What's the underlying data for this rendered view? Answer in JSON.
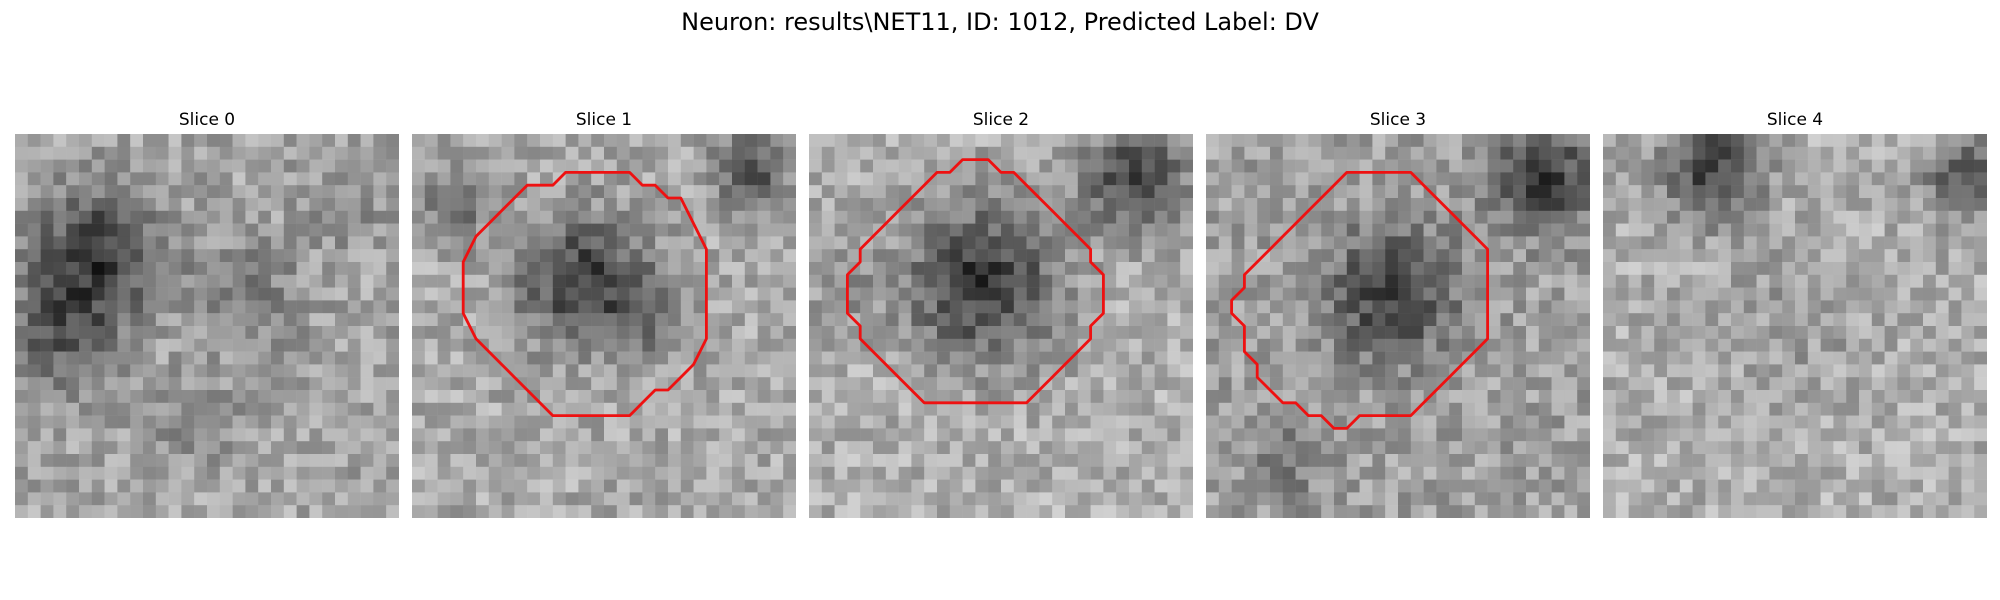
{
  "figure": {
    "title": "Neuron: results\\NET11, ID: 1012, Predicted Label: DV"
  },
  "slices": [
    {
      "title": "Slice 0",
      "contour": null
    },
    {
      "title": "Slice 1",
      "contour": [
        [
          16,
          3
        ],
        [
          17,
          3
        ],
        [
          18,
          4
        ],
        [
          19,
          4
        ],
        [
          20,
          5
        ],
        [
          21,
          5
        ],
        [
          22,
          7
        ],
        [
          23,
          9
        ],
        [
          23,
          16
        ],
        [
          22,
          18
        ],
        [
          21,
          19
        ],
        [
          20,
          20
        ],
        [
          19,
          20
        ],
        [
          18,
          21
        ],
        [
          17,
          22
        ],
        [
          11,
          22
        ],
        [
          9,
          20
        ],
        [
          8,
          19
        ],
        [
          7,
          18
        ],
        [
          5,
          16
        ],
        [
          4,
          14
        ],
        [
          4,
          10
        ],
        [
          5,
          8
        ],
        [
          6,
          7
        ],
        [
          7,
          6
        ],
        [
          8,
          5
        ],
        [
          9,
          4
        ],
        [
          11,
          4
        ],
        [
          12,
          3
        ],
        [
          13,
          3
        ],
        [
          14,
          3
        ],
        [
          15,
          3
        ]
      ]
    },
    {
      "title": "Slice 2",
      "contour": [
        [
          13,
          2
        ],
        [
          14,
          2
        ],
        [
          15,
          3
        ],
        [
          16,
          3
        ],
        [
          17,
          4
        ],
        [
          18,
          5
        ],
        [
          19,
          6
        ],
        [
          20,
          7
        ],
        [
          21,
          8
        ],
        [
          22,
          9
        ],
        [
          22,
          10
        ],
        [
          23,
          11
        ],
        [
          23,
          12
        ],
        [
          23,
          13
        ],
        [
          23,
          14
        ],
        [
          22,
          15
        ],
        [
          22,
          16
        ],
        [
          21,
          17
        ],
        [
          20,
          18
        ],
        [
          19,
          19
        ],
        [
          18,
          20
        ],
        [
          17,
          21
        ],
        [
          9,
          21
        ],
        [
          8,
          20
        ],
        [
          7,
          19
        ],
        [
          6,
          18
        ],
        [
          5,
          17
        ],
        [
          4,
          16
        ],
        [
          4,
          15
        ],
        [
          3,
          14
        ],
        [
          3,
          13
        ],
        [
          3,
          12
        ],
        [
          3,
          11
        ],
        [
          4,
          10
        ],
        [
          4,
          9
        ],
        [
          5,
          8
        ],
        [
          6,
          7
        ],
        [
          7,
          6
        ],
        [
          8,
          5
        ],
        [
          9,
          4
        ],
        [
          10,
          3
        ],
        [
          11,
          3
        ],
        [
          12,
          2
        ]
      ]
    },
    {
      "title": "Slice 3",
      "contour": [
        [
          11,
          3
        ],
        [
          12,
          3
        ],
        [
          13,
          3
        ],
        [
          14,
          3
        ],
        [
          15,
          3
        ],
        [
          16,
          3
        ],
        [
          17,
          4
        ],
        [
          18,
          5
        ],
        [
          19,
          6
        ],
        [
          20,
          7
        ],
        [
          21,
          8
        ],
        [
          22,
          9
        ],
        [
          22,
          16
        ],
        [
          21,
          17
        ],
        [
          20,
          18
        ],
        [
          19,
          19
        ],
        [
          18,
          20
        ],
        [
          17,
          21
        ],
        [
          16,
          22
        ],
        [
          15,
          22
        ],
        [
          13,
          22
        ],
        [
          12,
          22
        ],
        [
          11,
          23
        ],
        [
          10,
          23
        ],
        [
          9,
          22
        ],
        [
          8,
          22
        ],
        [
          7,
          21
        ],
        [
          6,
          21
        ],
        [
          5,
          20
        ],
        [
          4,
          19
        ],
        [
          4,
          18
        ],
        [
          3,
          17
        ],
        [
          3,
          15
        ],
        [
          2,
          14
        ],
        [
          2,
          13
        ],
        [
          3,
          12
        ],
        [
          3,
          11
        ],
        [
          4,
          10
        ],
        [
          5,
          9
        ],
        [
          6,
          8
        ],
        [
          7,
          7
        ],
        [
          8,
          6
        ],
        [
          9,
          5
        ],
        [
          10,
          4
        ]
      ]
    },
    {
      "title": "Slice 4",
      "contour": null
    }
  ]
}
